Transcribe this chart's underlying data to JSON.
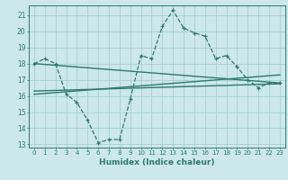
{
  "xlabel": "Humidex (Indice chaleur)",
  "ylabel": "",
  "bg_color": "#cce8e8",
  "grid_color": "#aacece",
  "line_color": "#2d7a6a",
  "xlim": [
    -0.5,
    23.5
  ],
  "ylim": [
    12.8,
    21.6
  ],
  "yticks": [
    13,
    14,
    15,
    16,
    17,
    18,
    19,
    20,
    21
  ],
  "xticks": [
    0,
    1,
    2,
    3,
    4,
    5,
    6,
    7,
    8,
    9,
    10,
    11,
    12,
    13,
    14,
    15,
    16,
    17,
    18,
    19,
    20,
    21,
    22,
    23
  ],
  "data_x": [
    0,
    1,
    2,
    3,
    4,
    5,
    6,
    7,
    8,
    9,
    10,
    11,
    12,
    13,
    14,
    15,
    16,
    17,
    18,
    19,
    20,
    21,
    22,
    23
  ],
  "data_y": [
    18.0,
    18.3,
    18.0,
    16.1,
    15.6,
    14.5,
    13.1,
    13.3,
    13.3,
    15.8,
    18.5,
    18.3,
    20.3,
    21.3,
    20.2,
    19.9,
    19.7,
    18.3,
    18.5,
    17.8,
    17.0,
    16.5,
    16.8,
    16.8
  ],
  "line1_x": [
    0,
    23
  ],
  "line1_y": [
    18.0,
    16.8
  ],
  "line2_x": [
    0,
    23
  ],
  "line2_y": [
    16.1,
    17.3
  ],
  "line3_x": [
    0,
    23
  ],
  "line3_y": [
    16.3,
    16.75
  ]
}
